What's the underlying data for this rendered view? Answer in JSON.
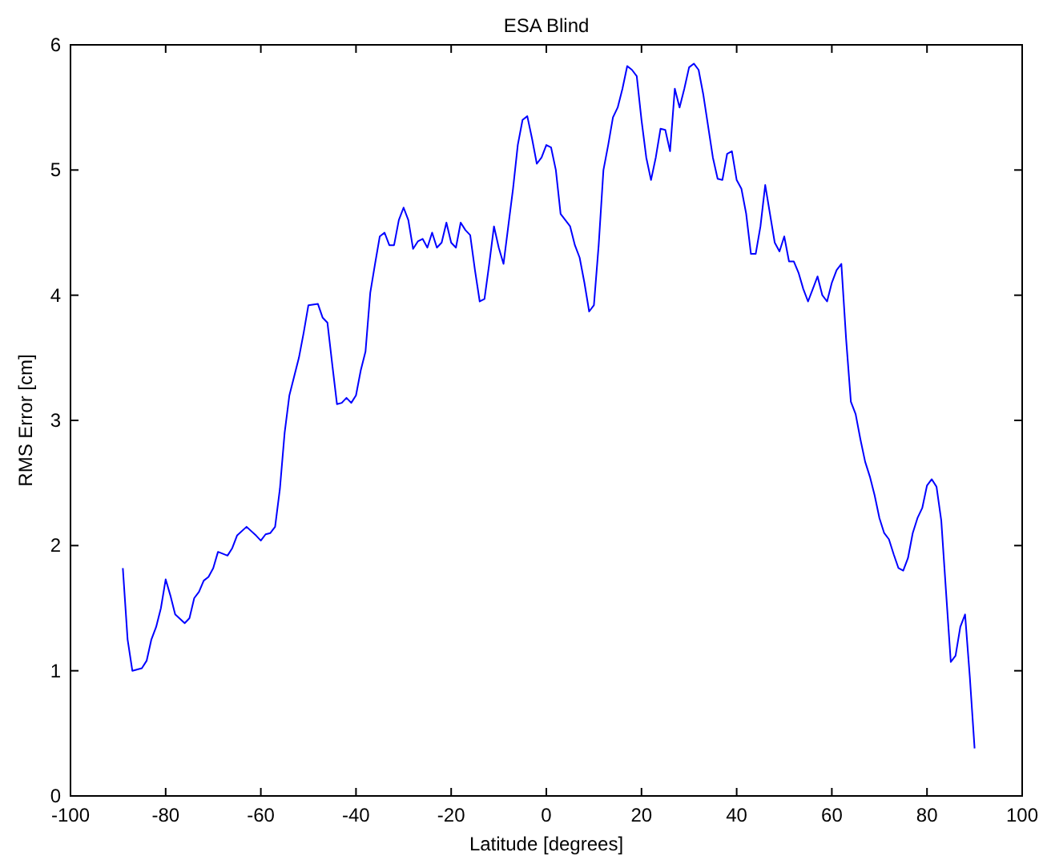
{
  "chart_data": {
    "type": "line",
    "title": "ESA Blind",
    "xlabel": "Latitude [degrees]",
    "ylabel": "RMS Error [cm]",
    "xlim": [
      -100,
      100
    ],
    "xticks": [
      -100,
      -80,
      -60,
      -40,
      -20,
      0,
      20,
      40,
      60,
      80,
      100
    ],
    "ylim": [
      0,
      6
    ],
    "yticks": [
      0,
      1,
      2,
      3,
      4,
      5,
      6
    ],
    "grid": false,
    "series": [
      {
        "color": "#0000ff",
        "x": [
          -89,
          -88,
          -87,
          -85,
          -84,
          -83,
          -82,
          -81,
          -80,
          -79,
          -78,
          -76,
          -75,
          -74,
          -73,
          -72,
          -71,
          -70,
          -69,
          -67,
          -66,
          -65,
          -63,
          -61,
          -60,
          -59,
          -58,
          -57,
          -56,
          -55,
          -54,
          -53,
          -52,
          -51,
          -50,
          -48,
          -47,
          -46,
          -45,
          -44,
          -43,
          -42,
          -41,
          -40,
          -39,
          -38,
          -37,
          -36,
          -35,
          -34,
          -33,
          -32,
          -31,
          -30,
          -29,
          -28,
          -27,
          -26,
          -25,
          -24,
          -23,
          -22,
          -21,
          -20,
          -19,
          -18,
          -17,
          -16,
          -15,
          -14,
          -13,
          -12,
          -11,
          -10,
          -9,
          -8,
          -7,
          -6,
          -5,
          -4,
          -3,
          -2,
          -1,
          0,
          1,
          2,
          3,
          4,
          5,
          6,
          7,
          8,
          9,
          10,
          11,
          12,
          13,
          14,
          15,
          16,
          17,
          18,
          19,
          20,
          21,
          22,
          23,
          24,
          25,
          26,
          27,
          28,
          29,
          30,
          31,
          32,
          33,
          34,
          35,
          36,
          37,
          38,
          39,
          40,
          41,
          42,
          43,
          44,
          45,
          46,
          47,
          48,
          49,
          50,
          51,
          52,
          53,
          54,
          55,
          56,
          57,
          58,
          59,
          60,
          61,
          62,
          63,
          64,
          65,
          66,
          67,
          68,
          69,
          70,
          71,
          72,
          73,
          74,
          75,
          76,
          77,
          78,
          79,
          80,
          81,
          82,
          83,
          84,
          85,
          86,
          87,
          88,
          89,
          90
        ],
        "values": [
          1.82,
          1.25,
          1.0,
          1.02,
          1.08,
          1.25,
          1.35,
          1.5,
          1.73,
          1.6,
          1.45,
          1.38,
          1.42,
          1.58,
          1.63,
          1.72,
          1.75,
          1.82,
          1.95,
          1.92,
          1.98,
          2.08,
          2.15,
          2.08,
          2.04,
          2.09,
          2.1,
          2.15,
          2.45,
          2.9,
          3.2,
          3.35,
          3.5,
          3.7,
          3.92,
          3.93,
          3.82,
          3.78,
          3.45,
          3.13,
          3.14,
          3.18,
          3.14,
          3.2,
          3.4,
          3.55,
          4.02,
          4.25,
          4.47,
          4.5,
          4.4,
          4.4,
          4.6,
          4.7,
          4.6,
          4.37,
          4.43,
          4.45,
          4.38,
          4.5,
          4.38,
          4.42,
          4.58,
          4.42,
          4.38,
          4.58,
          4.52,
          4.48,
          4.2,
          3.95,
          3.97,
          4.25,
          4.55,
          4.38,
          4.25,
          4.55,
          4.85,
          5.2,
          5.4,
          5.43,
          5.25,
          5.05,
          5.1,
          5.2,
          5.18,
          5.0,
          4.65,
          4.6,
          4.55,
          4.4,
          4.3,
          4.1,
          3.87,
          3.92,
          4.4,
          5.0,
          5.2,
          5.42,
          5.5,
          5.65,
          5.83,
          5.8,
          5.75,
          5.4,
          5.1,
          4.92,
          5.1,
          5.33,
          5.32,
          5.15,
          5.65,
          5.5,
          5.65,
          5.82,
          5.85,
          5.8,
          5.6,
          5.35,
          5.1,
          4.93,
          4.92,
          5.13,
          5.15,
          4.92,
          4.85,
          4.65,
          4.33,
          4.33,
          4.55,
          4.88,
          4.65,
          4.42,
          4.35,
          4.47,
          4.27,
          4.27,
          4.18,
          4.05,
          3.95,
          4.05,
          4.15,
          4.0,
          3.95,
          4.1,
          4.2,
          4.25,
          3.65,
          3.15,
          3.05,
          2.85,
          2.67,
          2.55,
          2.4,
          2.22,
          2.1,
          2.05,
          1.93,
          1.82,
          1.8,
          1.9,
          2.1,
          2.22,
          2.3,
          2.48,
          2.53,
          2.47,
          2.2,
          1.63,
          1.07,
          1.12,
          1.35,
          1.45,
          0.95,
          0.38
        ]
      }
    ]
  }
}
